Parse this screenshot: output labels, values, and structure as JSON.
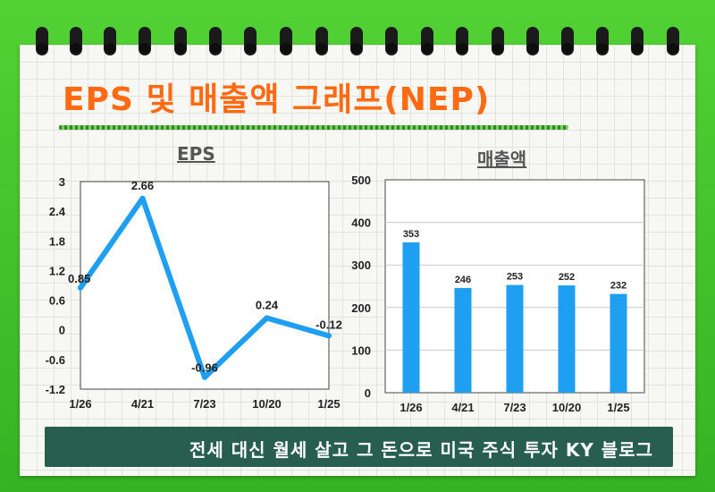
{
  "page": {
    "title": "EPS 및 매출액 그래프(NEP)",
    "banner": "전세 대신 월세 살고 그 돈으로 미국 주식 투자 KY 블로그"
  },
  "colors": {
    "background": "#3fbf2a",
    "title": "#ff6a12",
    "series": "#1e9ff2",
    "banner": "#275e4d"
  },
  "chart_data": [
    {
      "type": "line",
      "title": "EPS",
      "categories": [
        "1/26",
        "4/21",
        "7/23",
        "10/20",
        "1/25"
      ],
      "values": [
        0.85,
        2.66,
        -0.96,
        0.24,
        -0.12
      ],
      "data_labels": [
        "0.85",
        "2.66",
        "-0.96",
        "0.24",
        "-0.12"
      ],
      "ylim": [
        -1.2,
        3
      ],
      "yticks": [
        "3",
        "2.4",
        "1.8",
        "1.2",
        "0.6",
        "0",
        "-0.6",
        "-1.2"
      ],
      "grid": false,
      "legend": "none"
    },
    {
      "type": "bar",
      "title": "매출액",
      "categories": [
        "1/26",
        "4/21",
        "7/23",
        "10/20",
        "1/25"
      ],
      "values": [
        353,
        246,
        253,
        252,
        232
      ],
      "data_labels": [
        "353",
        "246",
        "253",
        "252",
        "232"
      ],
      "ylim": [
        0,
        500
      ],
      "yticks": [
        "500",
        "400",
        "300",
        "200",
        "100",
        "0"
      ],
      "grid": true,
      "legend": "none"
    }
  ]
}
